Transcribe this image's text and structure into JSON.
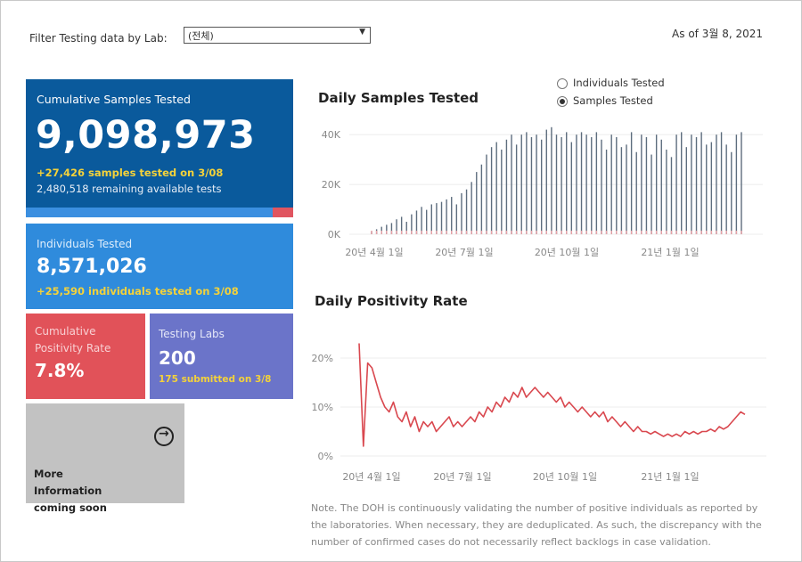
{
  "filter": {
    "label": "Filter Testing data by Lab:",
    "value": "(전체)"
  },
  "as_of": "As of 3월 8, 2021",
  "cards": {
    "samples": {
      "title": "Cumulative Samples Tested",
      "value": "9,098,973",
      "added": "+27,426 samples tested on 3/08",
      "remaining": "2,480,518 remaining available tests",
      "bar_fill_fraction": 0.922
    },
    "individuals": {
      "title": "Individuals Tested",
      "value": "8,571,026",
      "added": "+25,590  individuals  tested on 3/08"
    },
    "positivity": {
      "title": "Cumulative Positivity Rate",
      "value": "7.8%"
    },
    "labs": {
      "title": "Testing Labs",
      "value": "200",
      "sub": "175 submitted on 3/8"
    },
    "more": {
      "title": "More Information coming soon"
    }
  },
  "radio": {
    "options": [
      "Individuals Tested",
      "Samples Tested"
    ],
    "selected": "Samples Tested"
  },
  "titles": {
    "samples": "Daily Samples Tested",
    "positivity": "Daily Positivity Rate"
  },
  "note": "Note. The DOH is continuously validating the number of positive individuals as reported by the laboratories. When necessary, they are deduplicated. As such, the discrepancy with the number of confirmed cases do not necessarily reflect backlogs in case validation.",
  "chart_data": [
    {
      "type": "bar",
      "title": "Daily Samples Tested",
      "x_ticks": [
        "20년 4월 1일",
        "20년 7월 1일",
        "20년 10월 1일",
        "21년 1월 1일"
      ],
      "y_ticks": [
        "0K",
        "20K",
        "40K"
      ],
      "ylim": [
        0,
        44000
      ],
      "bar_color": "#5d6d7e",
      "secondary_color": "#e8a3a8",
      "values": [
        1200,
        2000,
        3000,
        3800,
        4500,
        6000,
        7000,
        5000,
        8000,
        9500,
        11000,
        9800,
        12000,
        12500,
        13000,
        14000,
        15000,
        12000,
        16500,
        18000,
        21000,
        25000,
        28000,
        32000,
        35000,
        37000,
        34000,
        38000,
        40000,
        36000,
        40000,
        41000,
        39000,
        40000,
        38000,
        42000,
        43000,
        40000,
        39000,
        41000,
        37000,
        40000,
        41000,
        40000,
        39000,
        41000,
        38000,
        34000,
        40000,
        39000,
        35000,
        36000,
        41000,
        33000,
        40000,
        39000,
        32000,
        40000,
        38000,
        34000,
        31000,
        40000,
        41000,
        35000,
        40000,
        39000,
        41000,
        36000,
        37000,
        40000,
        41000,
        36000,
        33000,
        40000,
        41000
      ]
    },
    {
      "type": "line",
      "title": "Daily Positivity Rate",
      "x_ticks": [
        "20년 4월 1일",
        "20년 7월 1일",
        "20년 10월 1일",
        "21년 1월 1일"
      ],
      "y_ticks": [
        "0%",
        "10%",
        "20%"
      ],
      "ylim": [
        0,
        24
      ],
      "line_color": "#d9484f",
      "values": [
        23,
        2,
        19,
        18,
        15,
        12,
        10,
        9,
        11,
        8,
        7,
        9,
        6,
        8,
        5,
        7,
        6,
        7,
        5,
        6,
        7,
        8,
        6,
        7,
        6,
        7,
        8,
        7,
        9,
        8,
        10,
        9,
        11,
        10,
        12,
        11,
        13,
        12,
        14,
        12,
        13,
        14,
        13,
        12,
        13,
        12,
        11,
        12,
        10,
        11,
        10,
        9,
        10,
        9,
        8,
        9,
        8,
        9,
        7,
        8,
        7,
        6,
        7,
        6,
        5,
        6,
        5,
        5,
        4.5,
        5,
        4.5,
        4,
        4.5,
        4,
        4.5,
        4,
        5,
        4.5,
        5,
        4.5,
        5,
        5,
        5.5,
        5,
        6,
        5.5,
        6,
        7,
        8,
        9,
        8.5
      ]
    }
  ]
}
